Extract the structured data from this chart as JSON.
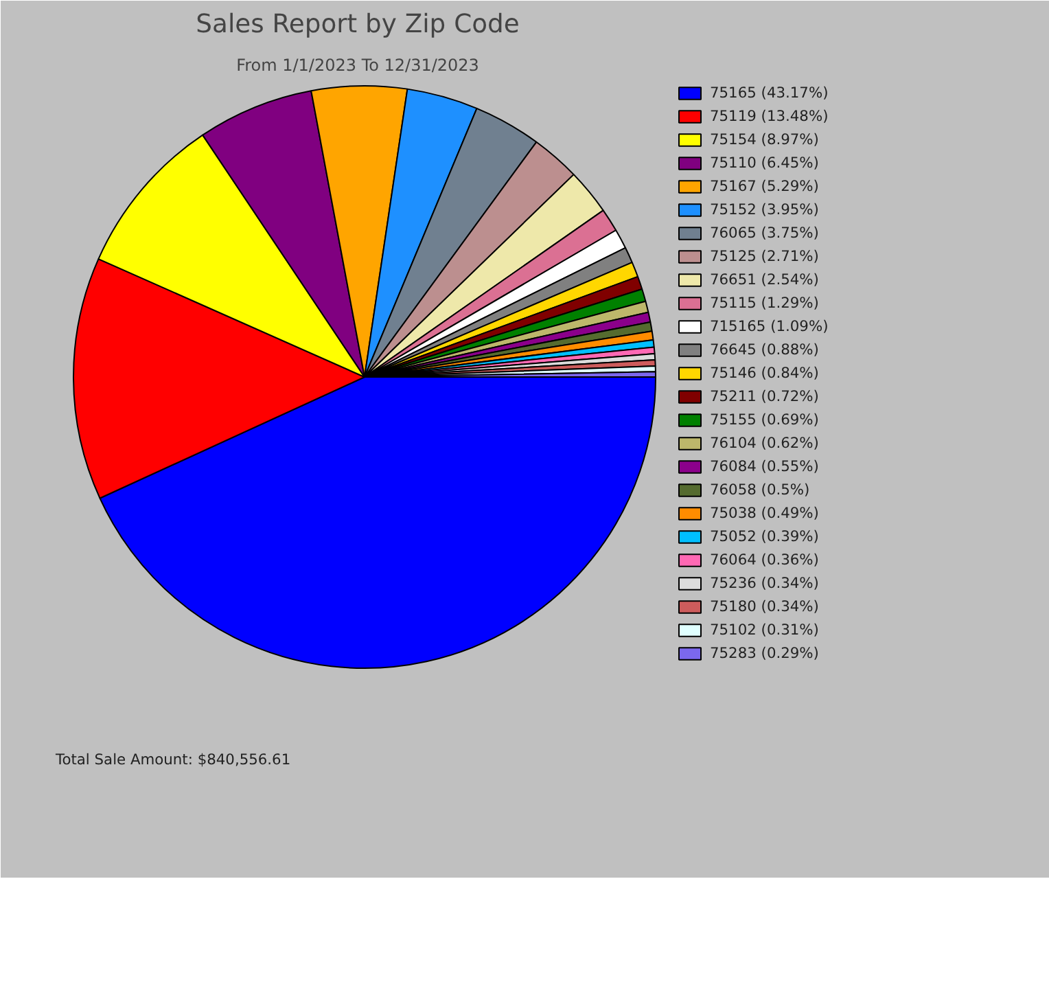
{
  "chart_data": {
    "type": "pie",
    "title": "Sales Report by Zip Code",
    "subtitle": "From 1/1/2023 To 12/31/2023",
    "categories": [
      "75165 (43.17%)",
      "75119 (13.48%)",
      "75154 (8.97%)",
      "75110 (6.45%)",
      "75167 (5.29%)",
      "75152 (3.95%)",
      "76065 (3.75%)",
      "75125 (2.71%)",
      "76651 (2.54%)",
      "75115 (1.29%)",
      "715165 (1.09%)",
      "76645 (0.88%)",
      "75146 (0.84%)",
      "75211 (0.72%)",
      "75155 (0.69%)",
      "76104 (0.62%)",
      "76084 (0.55%)",
      "76058 (0.5%)",
      "75038 (0.49%)",
      "75052 (0.39%)",
      "76064 (0.36%)",
      "75236 (0.34%)",
      "75180 (0.34%)",
      "75102 (0.31%)",
      "75283 (0.29%)"
    ],
    "values": [
      43.17,
      13.48,
      8.97,
      6.45,
      5.29,
      3.95,
      3.75,
      2.71,
      2.54,
      1.29,
      1.09,
      0.88,
      0.84,
      0.72,
      0.69,
      0.62,
      0.55,
      0.5,
      0.49,
      0.39,
      0.36,
      0.34,
      0.34,
      0.31,
      0.29
    ],
    "colors": [
      "#0000ff",
      "#ff0000",
      "#ffff00",
      "#800080",
      "#ffa500",
      "#1e90ff",
      "#708090",
      "#bc8f8f",
      "#eee8aa",
      "#db7093",
      "#ffffff",
      "#808080",
      "#ffd700",
      "#800000",
      "#008000",
      "#bdb76b",
      "#8b008b",
      "#556b2f",
      "#ff8c00",
      "#00bfff",
      "#ff69b4",
      "#dcdcdc",
      "#cd5c5c",
      "#e0ffff",
      "#7b68ee"
    ],
    "legend": "right",
    "annotations": [
      "Total Sale Amount: $840,556.61"
    ]
  }
}
